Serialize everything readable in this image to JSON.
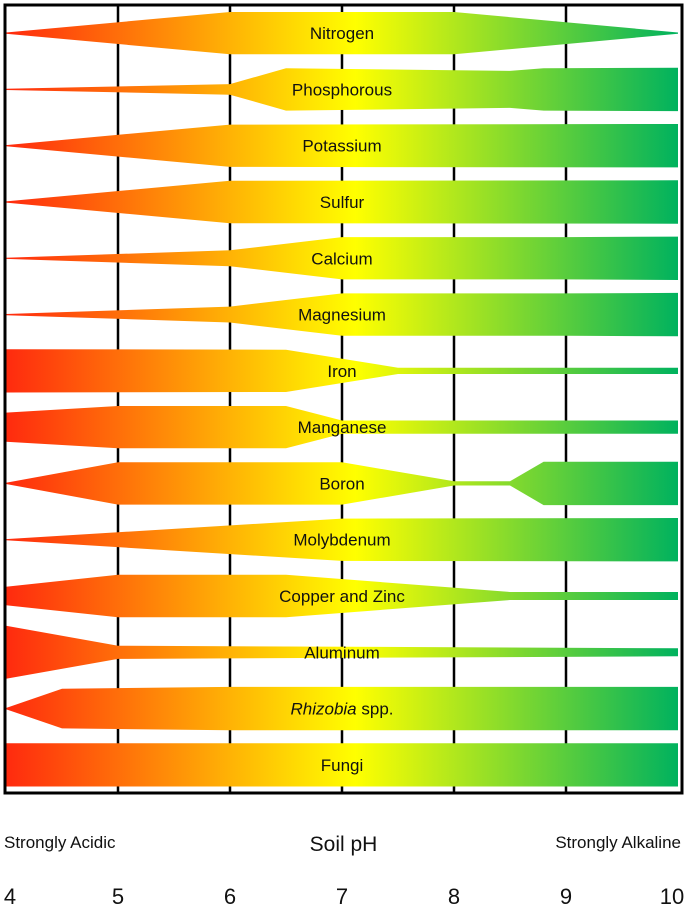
{
  "chart_data": {
    "type": "band",
    "title": "",
    "xlabel": "Soil pH",
    "x_left_label": "Strongly Acidic",
    "x_right_label": "Strongly Alkaline",
    "x_ticks": [
      4,
      5,
      6,
      7,
      8,
      9,
      10
    ],
    "xlim": [
      4,
      10
    ],
    "grid": true,
    "colors": {
      "acidic": "#ff2a0e",
      "neutral": "#ffff00",
      "alkaline": "#00b25e"
    },
    "value_description": "relative availability (band thickness, 0-1) at each soil pH",
    "series": [
      {
        "name": "Nitrogen",
        "points": [
          [
            4,
            0.0
          ],
          [
            6,
            0.8
          ],
          [
            8,
            0.8
          ],
          [
            10,
            0.0
          ]
        ]
      },
      {
        "name": "Phosphorous",
        "points": [
          [
            4,
            0.0
          ],
          [
            6,
            0.2
          ],
          [
            6.5,
            0.8
          ],
          [
            8.5,
            0.7
          ],
          [
            8.8,
            0.8
          ],
          [
            10,
            0.82
          ]
        ]
      },
      {
        "name": "Potassium",
        "points": [
          [
            4,
            0.0
          ],
          [
            6,
            0.8
          ],
          [
            10,
            0.82
          ]
        ]
      },
      {
        "name": "Sulfur",
        "points": [
          [
            4,
            0.0
          ],
          [
            6,
            0.8
          ],
          [
            10,
            0.82
          ]
        ]
      },
      {
        "name": "Calcium",
        "points": [
          [
            4,
            0.0
          ],
          [
            6,
            0.3
          ],
          [
            7,
            0.8
          ],
          [
            9,
            0.8
          ],
          [
            10,
            0.82
          ]
        ]
      },
      {
        "name": "Magnesium",
        "points": [
          [
            4,
            0.0
          ],
          [
            6,
            0.3
          ],
          [
            7,
            0.8
          ],
          [
            9,
            0.8
          ],
          [
            10,
            0.82
          ]
        ]
      },
      {
        "name": "Iron",
        "points": [
          [
            4,
            0.82
          ],
          [
            6.5,
            0.8
          ],
          [
            7.5,
            0.12
          ],
          [
            10,
            0.12
          ]
        ]
      },
      {
        "name": "Manganese",
        "points": [
          [
            4,
            0.55
          ],
          [
            5,
            0.8
          ],
          [
            6.5,
            0.8
          ],
          [
            7,
            0.25
          ],
          [
            10,
            0.25
          ]
        ]
      },
      {
        "name": "Boron",
        "points": [
          [
            4,
            0.0
          ],
          [
            5,
            0.8
          ],
          [
            7,
            0.8
          ],
          [
            8,
            0.08
          ],
          [
            8.5,
            0.08
          ],
          [
            8.8,
            0.82
          ],
          [
            10,
            0.82
          ]
        ]
      },
      {
        "name": "Molybdenum",
        "points": [
          [
            4,
            0.0
          ],
          [
            7,
            0.8
          ],
          [
            10,
            0.82
          ]
        ]
      },
      {
        "name": "Copper and Zinc",
        "points": [
          [
            4,
            0.35
          ],
          [
            5,
            0.8
          ],
          [
            6.5,
            0.8
          ],
          [
            8.5,
            0.15
          ],
          [
            10,
            0.15
          ]
        ]
      },
      {
        "name": "Aluminum",
        "points": [
          [
            4,
            1.0
          ],
          [
            5,
            0.25
          ],
          [
            10,
            0.15
          ]
        ]
      },
      {
        "name": "Rhizobia spp.",
        "label_italic": "Rhizobia",
        "label_rest": " spp.",
        "points": [
          [
            4,
            0.0
          ],
          [
            4.5,
            0.75
          ],
          [
            6,
            0.82
          ],
          [
            10,
            0.82
          ]
        ]
      },
      {
        "name": "Fungi",
        "points": [
          [
            4,
            0.82
          ],
          [
            10,
            0.82
          ]
        ]
      }
    ]
  }
}
